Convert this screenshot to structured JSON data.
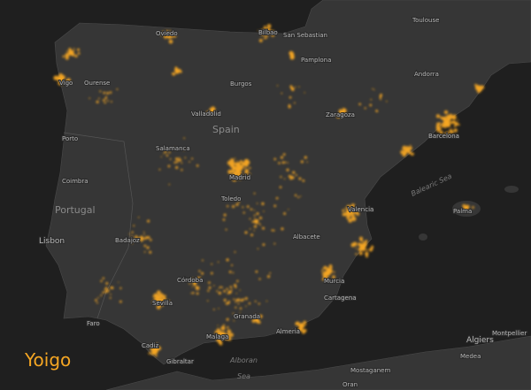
{
  "brand": "Yoigo",
  "labels": [
    "Toulouse",
    "Oviedo",
    "Bilbao",
    "San Sebastian",
    "Pamplona",
    "Andorra",
    "Vigo",
    "Ourense",
    "Burgos",
    "Valladolid",
    "Zaragoza",
    "Porto",
    "Salamanca",
    "Barcelona",
    "Coimbra",
    "Madrid",
    "Toledo",
    "Valencia",
    "Palma",
    "Lisbon",
    "Badajoz",
    "Albacete",
    "Córdoba",
    "Murcia",
    "Sevilla",
    "Cartagena",
    "Granada",
    "Faro",
    "Almeria",
    "Malaga",
    "Cadiz",
    "Gibraltar",
    "Algiers",
    "Montpellier",
    "Medea",
    "Mostaganem",
    "Oran"
  ],
  "countries": [
    "Spain",
    "Portugal"
  ],
  "seas": [
    "Balearic Sea",
    "Alboran",
    "Sea"
  ]
}
